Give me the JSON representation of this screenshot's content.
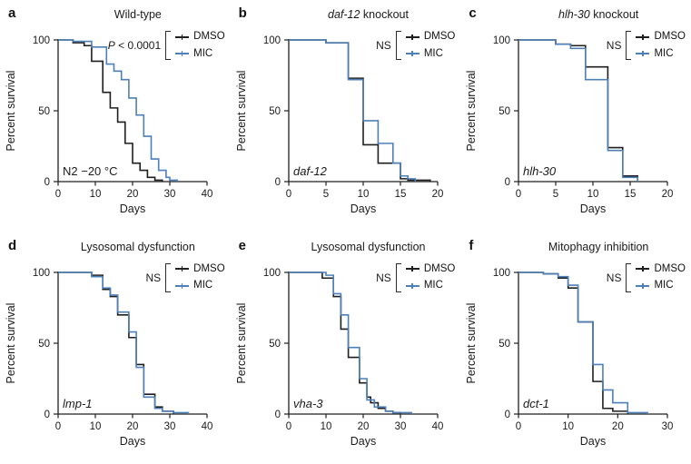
{
  "figure": {
    "background": "#ffffff",
    "colors": {
      "dmso": "#1f1f1f",
      "mic": "#4d80b8",
      "axis": "#1f1f1f"
    },
    "legend": {
      "dmso_label": "DMSO",
      "mic_label": "MIC"
    }
  },
  "chart_data": [
    {
      "type": "line",
      "panel_letter": "a",
      "title_segments": [
        {
          "text": "Wild-type",
          "italic": false
        }
      ],
      "significance_segments": [
        {
          "text": "P",
          "italic": true
        },
        {
          "text": " < 0.0001",
          "italic": false
        }
      ],
      "inner_label": {
        "text": "N2 −20 °C",
        "italic": false
      },
      "xlabel": "Days",
      "ylabel": "Percent survival",
      "xlim": [
        0,
        40
      ],
      "xticks": [
        0,
        10,
        20,
        30,
        40
      ],
      "ylim": [
        0,
        100
      ],
      "yticks": [
        0,
        50,
        100
      ],
      "grid": false,
      "legend_position": "top-right",
      "series": [
        {
          "name": "DMSO",
          "color": "#1f1f1f",
          "x": [
            0,
            4,
            7,
            9,
            12,
            14,
            16,
            18,
            20,
            22,
            24,
            26,
            28
          ],
          "y": [
            100,
            98,
            96,
            85,
            63,
            52,
            42,
            27,
            13,
            8,
            3,
            1,
            0
          ]
        },
        {
          "name": "MIC",
          "color": "#4d80b8",
          "x": [
            0,
            4,
            9,
            13,
            15,
            17,
            19,
            21,
            23,
            25,
            27,
            29,
            30,
            32
          ],
          "y": [
            100,
            99,
            95,
            83,
            78,
            72,
            59,
            47,
            32,
            16,
            8,
            3,
            1,
            0
          ]
        }
      ]
    },
    {
      "type": "line",
      "panel_letter": "b",
      "title_segments": [
        {
          "text": "daf-12",
          "italic": true
        },
        {
          "text": " knockout",
          "italic": false
        }
      ],
      "significance_segments": [
        {
          "text": "NS",
          "italic": false
        }
      ],
      "inner_label": {
        "text": "daf-12",
        "italic": true
      },
      "xlabel": "Days",
      "ylabel": "Percent survival",
      "xlim": [
        0,
        20
      ],
      "xticks": [
        0,
        5,
        10,
        15,
        20
      ],
      "ylim": [
        0,
        100
      ],
      "yticks": [
        0,
        50,
        100
      ],
      "grid": false,
      "legend_position": "top-right",
      "series": [
        {
          "name": "DMSO",
          "color": "#1f1f1f",
          "x": [
            0,
            5,
            8,
            10,
            12,
            15,
            16,
            19
          ],
          "y": [
            100,
            98,
            73,
            26,
            13,
            2,
            1,
            0
          ]
        },
        {
          "name": "MIC",
          "color": "#4d80b8",
          "x": [
            0,
            5,
            8,
            10,
            12,
            14,
            15,
            16,
            17
          ],
          "y": [
            100,
            98,
            72,
            43,
            27,
            13,
            4,
            2,
            0
          ]
        }
      ]
    },
    {
      "type": "line",
      "panel_letter": "c",
      "title_segments": [
        {
          "text": "hlh-30",
          "italic": true
        },
        {
          "text": " knockout",
          "italic": false
        }
      ],
      "significance_segments": [
        {
          "text": "NS",
          "italic": false
        }
      ],
      "inner_label": {
        "text": "hlh-30",
        "italic": true
      },
      "xlabel": "Days",
      "ylabel": "Percent survival",
      "xlim": [
        0,
        20
      ],
      "xticks": [
        0,
        5,
        10,
        15,
        20
      ],
      "ylim": [
        0,
        100
      ],
      "yticks": [
        0,
        50,
        100
      ],
      "grid": false,
      "legend_position": "top-right",
      "series": [
        {
          "name": "DMSO",
          "color": "#1f1f1f",
          "x": [
            0,
            5,
            7,
            9,
            12,
            14,
            16
          ],
          "y": [
            100,
            97,
            96,
            81,
            24,
            4,
            0
          ]
        },
        {
          "name": "MIC",
          "color": "#4d80b8",
          "x": [
            0,
            5,
            7,
            9,
            12,
            14,
            16
          ],
          "y": [
            100,
            97,
            94,
            72,
            22,
            3,
            0
          ]
        }
      ]
    },
    {
      "type": "line",
      "panel_letter": "d",
      "title_segments": [
        {
          "text": "Lysosomal dysfunction",
          "italic": false
        }
      ],
      "significance_segments": [
        {
          "text": "NS",
          "italic": false
        }
      ],
      "inner_label": {
        "text": "lmp-1",
        "italic": true
      },
      "xlabel": "Days",
      "ylabel": "Percent survival",
      "xlim": [
        0,
        40
      ],
      "xticks": [
        0,
        10,
        20,
        30,
        40
      ],
      "ylim": [
        0,
        100
      ],
      "yticks": [
        0,
        50,
        100
      ],
      "grid": false,
      "legend_position": "top-right",
      "series": [
        {
          "name": "DMSO",
          "color": "#1f1f1f",
          "x": [
            0,
            9,
            12,
            14,
            16,
            19,
            21,
            23,
            26,
            28,
            31
          ],
          "y": [
            100,
            98,
            88,
            83,
            70,
            54,
            35,
            14,
            5,
            2,
            0
          ]
        },
        {
          "name": "MIC",
          "color": "#4d80b8",
          "x": [
            0,
            9,
            12,
            14,
            16,
            19,
            21,
            23,
            26,
            28,
            31,
            35
          ],
          "y": [
            100,
            97,
            89,
            84,
            72,
            58,
            33,
            12,
            4,
            2,
            1,
            0
          ]
        }
      ]
    },
    {
      "type": "line",
      "panel_letter": "e",
      "title_segments": [
        {
          "text": "Lysosomal dysfunction",
          "italic": false
        }
      ],
      "significance_segments": [
        {
          "text": "NS",
          "italic": false
        }
      ],
      "inner_label": {
        "text": "vha-3",
        "italic": true
      },
      "xlabel": "Days",
      "ylabel": "Percent survival",
      "xlim": [
        0,
        40
      ],
      "xticks": [
        0,
        10,
        20,
        30,
        40
      ],
      "ylim": [
        0,
        100
      ],
      "yticks": [
        0,
        50,
        100
      ],
      "grid": false,
      "legend_position": "top-right",
      "series": [
        {
          "name": "DMSO",
          "color": "#1f1f1f",
          "x": [
            0,
            9,
            12,
            14,
            16,
            19,
            21,
            22,
            24,
            26,
            28,
            30
          ],
          "y": [
            100,
            96,
            83,
            60,
            40,
            22,
            12,
            8,
            4,
            2,
            1,
            0
          ]
        },
        {
          "name": "MIC",
          "color": "#4d80b8",
          "x": [
            0,
            10,
            12,
            14,
            16,
            19,
            21,
            23,
            26,
            28,
            33
          ],
          "y": [
            100,
            98,
            85,
            70,
            47,
            25,
            10,
            5,
            2,
            1,
            0
          ]
        }
      ]
    },
    {
      "type": "line",
      "panel_letter": "f",
      "title_segments": [
        {
          "text": "Mitophagy inhibition",
          "italic": false
        }
      ],
      "significance_segments": [
        {
          "text": "NS",
          "italic": false
        }
      ],
      "inner_label": {
        "text": "dct-1",
        "italic": true
      },
      "xlabel": "Days",
      "ylabel": "Percent survival",
      "xlim": [
        0,
        30
      ],
      "xticks": [
        0,
        10,
        20,
        30
      ],
      "ylim": [
        0,
        100
      ],
      "yticks": [
        0,
        50,
        100
      ],
      "grid": false,
      "legend_position": "top-right",
      "series": [
        {
          "name": "DMSO",
          "color": "#1f1f1f",
          "x": [
            0,
            5,
            8,
            10,
            12,
            15,
            17,
            19,
            22
          ],
          "y": [
            100,
            99,
            96,
            89,
            65,
            23,
            4,
            2,
            0
          ]
        },
        {
          "name": "MIC",
          "color": "#4d80b8",
          "x": [
            0,
            5,
            8,
            10,
            12,
            15,
            17,
            19,
            22,
            26
          ],
          "y": [
            100,
            99,
            97,
            91,
            65,
            35,
            17,
            8,
            1,
            0
          ]
        }
      ]
    }
  ]
}
